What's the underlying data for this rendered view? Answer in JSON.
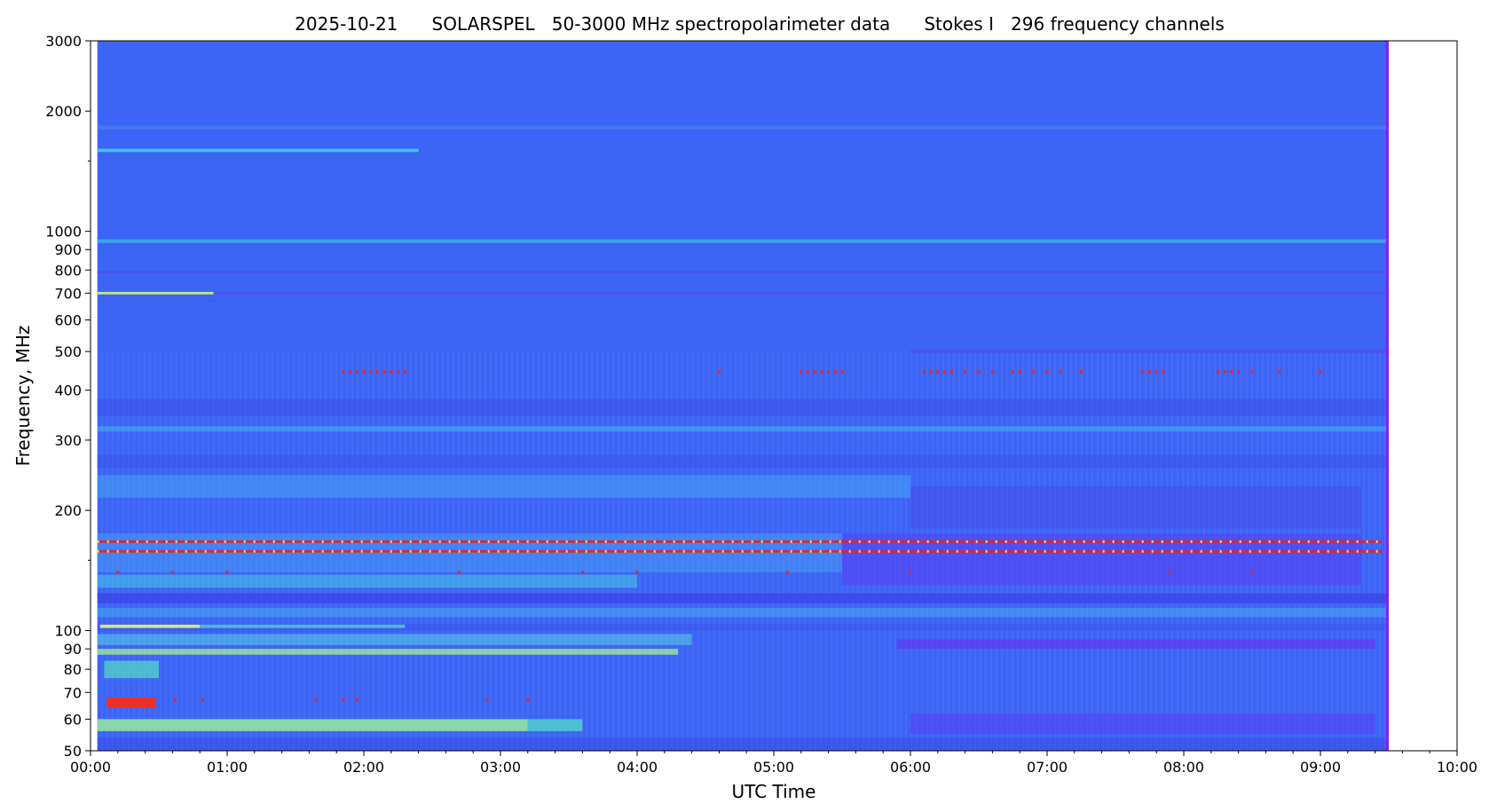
{
  "chart_data": {
    "type": "heatmap",
    "title": "2025-10-21      SOLARSPEL   50-3000 MHz spectropolarimeter data      Stokes I   296 frequency channels",
    "xlabel": "UTC Time",
    "ylabel": "Frequency, MHz",
    "x_range_hours": [
      0,
      10
    ],
    "data_extent_hours": [
      0.05,
      9.5
    ],
    "y_range_mhz": [
      50,
      3000
    ],
    "y_scale": "log",
    "x_ticks": [
      "00:00",
      "01:00",
      "02:00",
      "03:00",
      "04:00",
      "05:00",
      "06:00",
      "07:00",
      "08:00",
      "09:00",
      "10:00"
    ],
    "y_tick_values": [
      50,
      60,
      70,
      80,
      90,
      100,
      200,
      300,
      400,
      500,
      600,
      700,
      800,
      900,
      1000,
      2000,
      3000
    ],
    "y_tick_labels": [
      "50",
      "60",
      "70",
      "80",
      "90",
      "100",
      "200",
      "300",
      "400",
      "500",
      "600",
      "700",
      "800",
      "900",
      "1000",
      "2000",
      "3000"
    ],
    "y_minor_ticks": [
      150,
      1500
    ],
    "colormap": "rainbow",
    "background_color": "#3c64f5",
    "bands": [
      {
        "f0": 1800,
        "f1": 1840,
        "t0": 0.05,
        "t1": 9.5,
        "color": "#4aa0f0",
        "opacity": 0.35
      },
      {
        "f0": 1580,
        "f1": 1610,
        "t0": 0.05,
        "t1": 2.4,
        "color": "#3fe4e0",
        "opacity": 0.75
      },
      {
        "f0": 935,
        "f1": 955,
        "t0": 0.05,
        "t1": 9.5,
        "color": "#3fd4e8",
        "opacity": 0.55
      },
      {
        "f0": 785,
        "f1": 795,
        "t0": 0.05,
        "t1": 9.5,
        "color": "#5a3fe6",
        "opacity": 0.45
      },
      {
        "f0": 695,
        "f1": 705,
        "t0": 0.05,
        "t1": 0.9,
        "color": "#c9f27a",
        "opacity": 0.9
      },
      {
        "f0": 695,
        "f1": 705,
        "t0": 0.9,
        "t1": 9.5,
        "color": "#5a3fe6",
        "opacity": 0.4
      },
      {
        "f0": 495,
        "f1": 505,
        "t0": 6.0,
        "t1": 9.5,
        "color": "#5a3fe6",
        "opacity": 0.45
      },
      {
        "f0": 345,
        "f1": 380,
        "t0": 0.05,
        "t1": 9.5,
        "color": "#3a50ea",
        "opacity": 0.55
      },
      {
        "f0": 315,
        "f1": 325,
        "t0": 0.05,
        "t1": 9.5,
        "color": "#3fc8ec",
        "opacity": 0.45
      },
      {
        "f0": 255,
        "f1": 275,
        "t0": 0.05,
        "t1": 9.5,
        "color": "#3a50ea",
        "opacity": 0.5
      },
      {
        "f0": 215,
        "f1": 245,
        "t0": 0.05,
        "t1": 6.0,
        "color": "#46a4f4",
        "opacity": 0.55
      },
      {
        "f0": 180,
        "f1": 230,
        "t0": 6.0,
        "t1": 9.3,
        "color": "#4a48ea",
        "opacity": 0.45
      },
      {
        "f0": 140,
        "f1": 175,
        "t0": 0.05,
        "t1": 5.5,
        "color": "#46a8f4",
        "opacity": 0.45
      },
      {
        "f0": 130,
        "f1": 175,
        "t0": 5.5,
        "t1": 9.3,
        "color": "#5a3ef0",
        "opacity": 0.55
      },
      {
        "f0": 128,
        "f1": 138,
        "t0": 0.05,
        "t1": 4.0,
        "color": "#44d4e4",
        "opacity": 0.5
      },
      {
        "f0": 117,
        "f1": 124,
        "t0": 0.05,
        "t1": 9.5,
        "color": "#3a44e6",
        "opacity": 0.75
      },
      {
        "f0": 108,
        "f1": 114,
        "t0": 0.05,
        "t1": 9.5,
        "color": "#47b6f2",
        "opacity": 0.45
      },
      {
        "f0": 100,
        "f1": 104,
        "t0": 0.05,
        "t1": 9.5,
        "color": "#3a52ea",
        "opacity": 0.5
      },
      {
        "f0": 101.5,
        "f1": 103.5,
        "t0": 0.07,
        "t1": 0.8,
        "color": "#d7ef7a",
        "opacity": 0.95
      },
      {
        "f0": 101.5,
        "f1": 103.5,
        "t0": 0.8,
        "t1": 2.3,
        "color": "#4fe2c8",
        "opacity": 0.7
      },
      {
        "f0": 92,
        "f1": 98,
        "t0": 0.05,
        "t1": 4.4,
        "color": "#5ad0e2",
        "opacity": 0.55
      },
      {
        "f0": 87,
        "f1": 90,
        "t0": 0.05,
        "t1": 4.3,
        "color": "#a6f08c",
        "opacity": 0.75
      },
      {
        "f0": 90,
        "f1": 95,
        "t0": 5.9,
        "t1": 9.4,
        "color": "#6a2ef0",
        "opacity": 0.6
      },
      {
        "f0": 76,
        "f1": 84,
        "t0": 0.1,
        "t1": 0.5,
        "color": "#58e8bc",
        "opacity": 0.65
      },
      {
        "f0": 64,
        "f1": 68,
        "t0": 0.12,
        "t1": 0.48,
        "color": "#ff2a10",
        "opacity": 0.92
      },
      {
        "f0": 56,
        "f1": 60,
        "t0": 0.05,
        "t1": 3.2,
        "color": "#9ef29a",
        "opacity": 0.8
      },
      {
        "f0": 56,
        "f1": 60,
        "t0": 3.2,
        "t1": 3.6,
        "color": "#58e2c8",
        "opacity": 0.7
      },
      {
        "f0": 55,
        "f1": 62,
        "t0": 6.0,
        "t1": 9.4,
        "color": "#5a3ef0",
        "opacity": 0.55
      },
      {
        "f0": 50,
        "f1": 54,
        "t0": 0.05,
        "t1": 9.5,
        "color": "#3a48e8",
        "opacity": 0.5
      },
      {
        "f0": 50,
        "f1": 3000,
        "t0": 9.48,
        "t1": 9.5,
        "color": "#8a1af6",
        "opacity": 0.9
      }
    ],
    "red_lines": [
      {
        "f": 167,
        "t0": 0.05,
        "t1": 9.45
      },
      {
        "f": 158,
        "t0": 0.05,
        "t1": 9.45
      }
    ],
    "red_dots": [
      {
        "f": 445,
        "t": [
          1.85,
          1.9,
          1.95,
          2.0,
          2.05,
          2.1,
          2.15,
          2.2,
          2.25,
          2.3,
          4.6,
          5.2,
          5.25,
          5.3,
          5.35,
          5.4,
          5.45,
          5.5,
          6.1,
          6.15,
          6.2,
          6.25,
          6.3,
          6.4,
          6.5,
          6.6,
          6.75,
          6.8,
          6.9,
          7.0,
          7.1,
          7.25,
          7.7,
          7.75,
          7.8,
          7.85,
          8.25,
          8.3,
          8.35,
          8.4,
          8.5,
          8.7,
          9.0
        ]
      },
      {
        "f": 140,
        "t": [
          0.2,
          0.6,
          1.0,
          2.7,
          3.6,
          4.0,
          5.1,
          6.0,
          7.9,
          8.5
        ]
      },
      {
        "f": 67,
        "t": [
          0.62,
          0.82,
          1.65,
          1.85,
          1.95,
          2.9,
          3.2
        ]
      }
    ]
  }
}
